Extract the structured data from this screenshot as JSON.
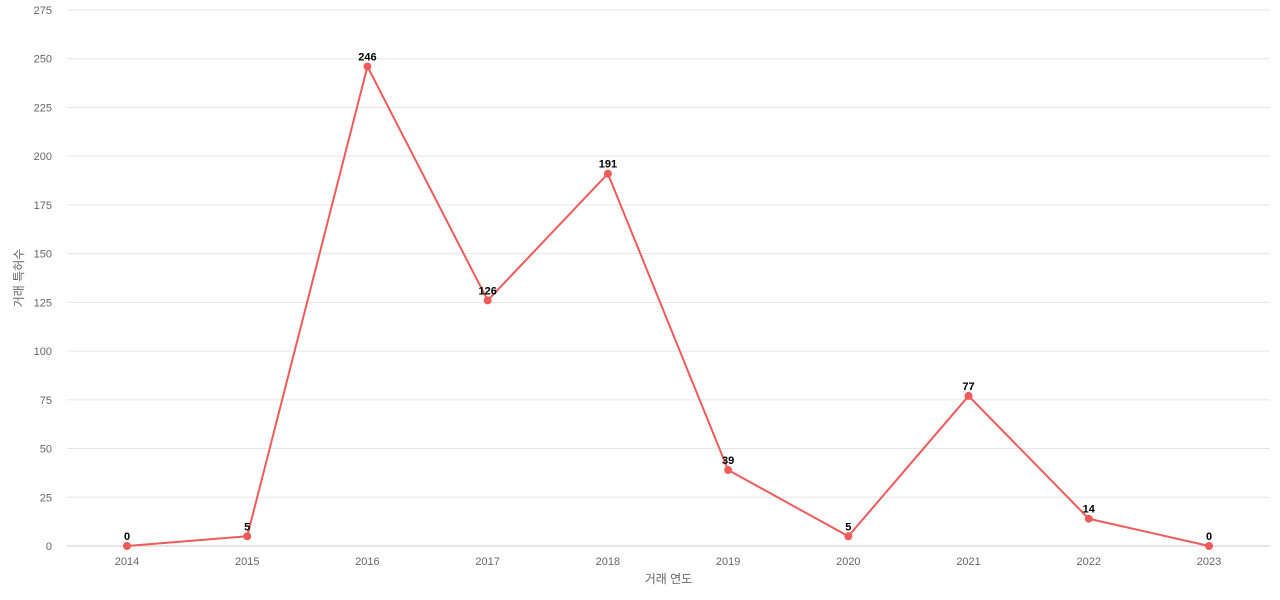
{
  "chart_data": {
    "type": "line",
    "title": "",
    "xlabel": "거래 연도",
    "ylabel": "거래 특허수",
    "categories": [
      "2014",
      "2015",
      "2016",
      "2017",
      "2018",
      "2019",
      "2020",
      "2021",
      "2022",
      "2023"
    ],
    "series": [
      {
        "values": [
          0,
          5,
          246,
          126,
          191,
          39,
          5,
          77,
          14,
          0
        ],
        "color": "#ef5a5a"
      }
    ],
    "ylim": [
      0,
      275
    ],
    "yticks": [
      0,
      25,
      50,
      75,
      100,
      125,
      150,
      175,
      200,
      225,
      250,
      275
    ],
    "grid": true,
    "legend": "none",
    "data_labels": true
  }
}
